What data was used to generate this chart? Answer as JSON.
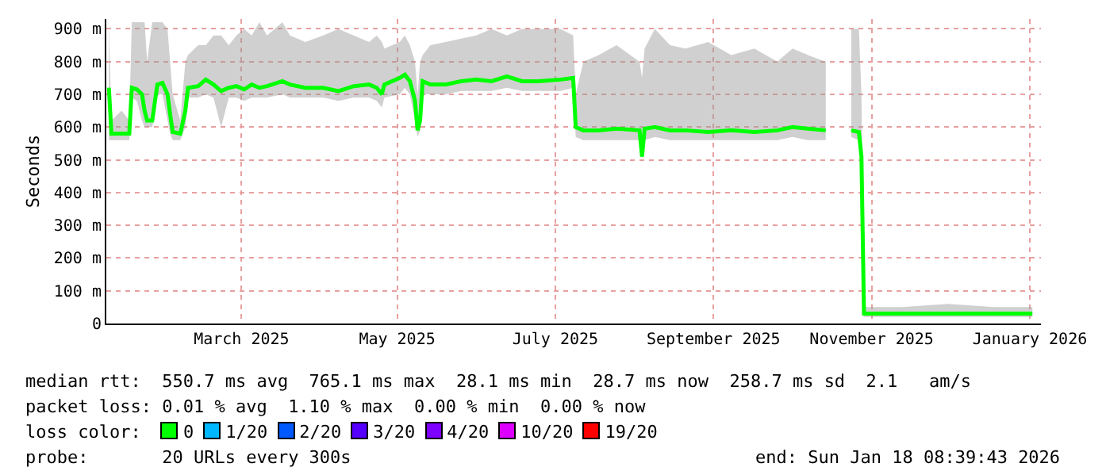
{
  "chart_data": {
    "type": "line",
    "ylabel": "Seconds",
    "x": [
      "2025-01-18",
      "2025-01-19",
      "2025-01-23",
      "2025-01-26",
      "2025-01-27",
      "2025-01-29",
      "2025-01-31",
      "2025-02-01",
      "2025-02-02",
      "2025-02-04",
      "2025-02-06",
      "2025-02-08",
      "2025-02-10",
      "2025-02-11",
      "2025-02-12",
      "2025-02-15",
      "2025-02-17",
      "2025-02-18",
      "2025-02-22",
      "2025-02-25",
      "2025-02-28",
      "2025-03-03",
      "2025-03-06",
      "2025-03-09",
      "2025-03-12",
      "2025-03-15",
      "2025-03-18",
      "2025-03-21",
      "2025-03-27",
      "2025-03-30",
      "2025-04-05",
      "2025-04-12",
      "2025-04-18",
      "2025-04-24",
      "2025-04-30",
      "2025-05-03",
      "2025-05-05",
      "2025-05-06",
      "2025-05-12",
      "2025-05-14",
      "2025-05-16",
      "2025-05-18",
      "2025-05-19",
      "2025-05-20",
      "2025-05-21",
      "2025-05-24",
      "2025-05-30",
      "2025-06-05",
      "2025-06-11",
      "2025-06-17",
      "2025-06-23",
      "2025-06-29",
      "2025-07-05",
      "2025-07-14",
      "2025-07-19",
      "2025-07-20",
      "2025-07-23",
      "2025-07-29",
      "2025-08-05",
      "2025-08-14",
      "2025-08-15",
      "2025-08-16",
      "2025-08-20",
      "2025-08-26",
      "2025-09-01",
      "2025-09-10",
      "2025-09-19",
      "2025-09-28",
      "2025-10-07",
      "2025-10-13",
      "2025-10-19",
      "2025-10-26",
      "2025-10-30",
      "2025-11-05",
      "2025-11-08",
      "2025-11-09",
      "2025-11-10",
      "2025-11-25",
      "2025-12-13",
      "2025-12-31",
      "2026-01-15"
    ],
    "series": [
      {
        "color": "#00ff00",
        "values": [
          720,
          580,
          580,
          580,
          720,
          715,
          700,
          650,
          620,
          620,
          730,
          735,
          700,
          640,
          585,
          580,
          650,
          720,
          725,
          745,
          730,
          710,
          720,
          725,
          715,
          730,
          720,
          725,
          740,
          730,
          720,
          720,
          710,
          725,
          730,
          720,
          700,
          730,
          750,
          760,
          740,
          680,
          590,
          620,
          740,
          730,
          730,
          740,
          745,
          740,
          755,
          740,
          740,
          745,
          750,
          600,
          590,
          590,
          595,
          590,
          510,
          595,
          600,
          590,
          590,
          585,
          590,
          585,
          590,
          600,
          595,
          590,
          null,
          590,
          585,
          510,
          30,
          30,
          30,
          30,
          30
        ],
        "lower": [
          560,
          560,
          560,
          560,
          690,
          680,
          620,
          600,
          600,
          600,
          700,
          700,
          620,
          580,
          560,
          560,
          600,
          690,
          690,
          700,
          690,
          600,
          690,
          690,
          680,
          690,
          690,
          690,
          700,
          690,
          690,
          690,
          680,
          690,
          690,
          680,
          660,
          690,
          700,
          720,
          700,
          620,
          570,
          590,
          700,
          700,
          700,
          710,
          710,
          710,
          720,
          710,
          710,
          710,
          720,
          570,
          560,
          560,
          560,
          560,
          500,
          560,
          570,
          560,
          560,
          560,
          560,
          560,
          560,
          570,
          560,
          560,
          null,
          570,
          560,
          500,
          20,
          20,
          20,
          20,
          20
        ],
        "upper": [
          920,
          620,
          650,
          620,
          920,
          920,
          920,
          920,
          800,
          920,
          920,
          920,
          900,
          800,
          700,
          620,
          800,
          820,
          850,
          850,
          880,
          880,
          850,
          880,
          900,
          880,
          920,
          880,
          920,
          880,
          860,
          880,
          900,
          880,
          860,
          880,
          860,
          840,
          860,
          880,
          850,
          800,
          700,
          800,
          820,
          850,
          860,
          870,
          880,
          900,
          880,
          900,
          900,
          900,
          880,
          700,
          800,
          820,
          850,
          800,
          750,
          840,
          900,
          850,
          840,
          860,
          820,
          840,
          800,
          840,
          820,
          800,
          null,
          900,
          900,
          700,
          50,
          50,
          60,
          50,
          50
        ]
      }
    ],
    "xlim": [
      "2025-01-17",
      "2026-01-18T08:39"
    ],
    "xticks": [
      {
        "value": "2025-03-11",
        "label": "March 2025"
      },
      {
        "value": "2025-05-11",
        "label": "May 2025"
      },
      {
        "value": "2025-07-12",
        "label": "July 2025"
      },
      {
        "value": "2025-09-12",
        "label": "September 2025"
      },
      {
        "value": "2025-11-13",
        "label": "November 2025"
      },
      {
        "value": "2026-01-14",
        "label": "January 2026"
      }
    ],
    "ylim": [
      0,
      930
    ],
    "yticks": [
      0,
      {
        "value": 100,
        "label": "100 m"
      },
      {
        "value": 200,
        "label": "200 m"
      },
      {
        "value": 300,
        "label": "300 m"
      },
      {
        "value": 400,
        "label": "400 m"
      },
      {
        "value": 500,
        "label": "500 m"
      },
      {
        "value": 600,
        "label": "600 m"
      },
      {
        "value": 700,
        "label": "700 m"
      },
      {
        "value": 800,
        "label": "800 m"
      },
      {
        "value": 900,
        "label": "900 m"
      }
    ],
    "grid": true,
    "annotations": [
      "median rtt:  550.7 ms avg  765.1 ms max  28.1 ms min  28.7 ms now  258.7 ms sd  2.1   am/s",
      "packet loss: 0.01 % avg  1.10 % max  0.00 % min  0.00 % now",
      "loss color:  0  1/20  2/20  3/20  4/20  10/20  19/20",
      "probe:       20 URLs every 300s",
      "end: Sun Jan 18 08:39:43 2026"
    ]
  }
}
